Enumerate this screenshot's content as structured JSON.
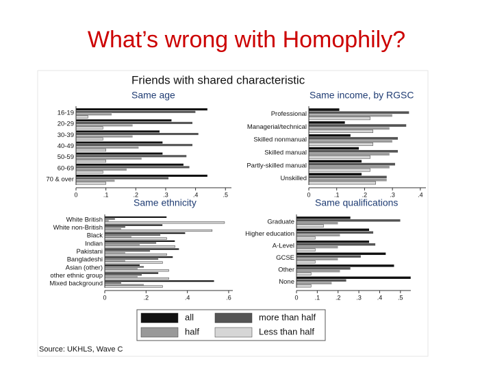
{
  "slide_title": "What’s wrong with Homophily?",
  "figure_title": "Friends with shared characteristic",
  "source": "Source: UKHLS, Wave C",
  "legend": [
    {
      "name": "all",
      "color": "#111111"
    },
    {
      "name": "more than half",
      "color": "#555555"
    },
    {
      "name": "half",
      "color": "#999999"
    },
    {
      "name": "Less than half",
      "color": "#d6d6d6"
    }
  ],
  "chart_data": [
    {
      "type": "bar",
      "title": "Same age",
      "categories": [
        "16-19",
        "20-29",
        "30-39",
        "40-49",
        "50-59",
        "60-69",
        "70 & over"
      ],
      "series": [
        {
          "values": [
            0.44,
            0.32,
            0.28,
            0.29,
            0.29,
            0.36,
            0.44
          ]
        },
        {
          "values": [
            0.4,
            0.39,
            0.41,
            0.39,
            0.37,
            0.38,
            0.31
          ]
        },
        {
          "values": [
            0.12,
            0.19,
            0.19,
            0.21,
            0.22,
            0.17,
            0.13
          ]
        },
        {
          "values": [
            0.04,
            0.09,
            0.09,
            0.1,
            0.1,
            0.09,
            0.1
          ]
        }
      ],
      "xlim": [
        0,
        0.52
      ],
      "xticks": [
        0,
        {
          "value": 0.1,
          "label": ".1"
        },
        {
          "value": 0.2,
          "label": ".2"
        },
        {
          "value": 0.3,
          "label": ".3"
        },
        {
          "value": 0.4,
          "label": ".4"
        },
        {
          "value": 0.5,
          "label": ".5"
        }
      ]
    },
    {
      "type": "bar",
      "title": "Same income, by RGSC",
      "categories": [
        "Professional",
        "Managerial/technical",
        "Skilled nonmanual",
        "Skilled manual",
        "Partly-skilled manual",
        "Unskilled"
      ],
      "series": [
        {
          "values": [
            0.11,
            0.13,
            0.15,
            0.18,
            0.19,
            0.19
          ]
        },
        {
          "values": [
            0.36,
            0.35,
            0.32,
            0.32,
            0.31,
            0.28
          ]
        },
        {
          "values": [
            0.3,
            0.29,
            0.3,
            0.29,
            0.29,
            0.28
          ]
        },
        {
          "values": [
            0.22,
            0.23,
            0.23,
            0.22,
            0.22,
            0.24
          ]
        }
      ],
      "xlim": [
        0,
        0.42
      ],
      "xticks": [
        0,
        {
          "value": 0.1,
          "label": ".1"
        },
        {
          "value": 0.2,
          "label": ".2"
        },
        {
          "value": 0.3,
          "label": ".3"
        },
        {
          "value": 0.4,
          "label": ".4"
        }
      ]
    },
    {
      "type": "bar",
      "title": "Same ethnicity",
      "categories": [
        "White British",
        "White non-British",
        "Black",
        "Indian",
        "Pakistani",
        "Bangladeshi",
        "Asian (other)",
        "other ethnic group",
        "Mixed background"
      ],
      "series": [
        {
          "values": [
            0.3,
            0.28,
            0.39,
            0.34,
            0.36,
            0.33,
            0.17,
            0.26,
            0.53
          ]
        },
        {
          "values": [
            0.05,
            0.1,
            0.27,
            0.25,
            0.22,
            0.26,
            0.19,
            0.18,
            0.08
          ]
        },
        {
          "values": [
            0.02,
            0.08,
            0.13,
            0.17,
            0.1,
            0.1,
            0.16,
            0.16,
            0.19
          ]
        },
        {
          "values": [
            0.58,
            0.52,
            0.3,
            0.34,
            0.3,
            0.28,
            0.31,
            0.31,
            0.28
          ]
        }
      ],
      "xlim": [
        0,
        0.62
      ],
      "xticks": [
        0,
        {
          "value": 0.2,
          "label": ".2"
        },
        {
          "value": 0.4,
          "label": ".4"
        },
        {
          "value": 0.6,
          "label": ".6"
        }
      ]
    },
    {
      "type": "bar",
      "title": "Same qualifications",
      "categories": [
        "Graduate",
        "Higher education",
        "A-Level",
        "GCSE",
        "Other",
        "None"
      ],
      "series": [
        {
          "values": [
            0.26,
            0.35,
            0.35,
            0.43,
            0.47,
            0.55
          ]
        },
        {
          "values": [
            0.5,
            0.37,
            0.38,
            0.31,
            0.26,
            0.24
          ]
        },
        {
          "values": [
            0.2,
            0.21,
            0.2,
            0.2,
            0.21,
            0.17
          ]
        },
        {
          "values": [
            0.13,
            0.09,
            0.09,
            0.09,
            0.07,
            0.07
          ]
        }
      ],
      "xlim": [
        0,
        0.55
      ],
      "xticks": [
        0,
        {
          "value": 0.1,
          "label": ".1"
        },
        {
          "value": 0.2,
          "label": ".2"
        },
        {
          "value": 0.3,
          "label": ".3"
        },
        {
          "value": 0.4,
          "label": ".4"
        },
        {
          "value": 0.5,
          "label": ".5"
        }
      ]
    }
  ]
}
